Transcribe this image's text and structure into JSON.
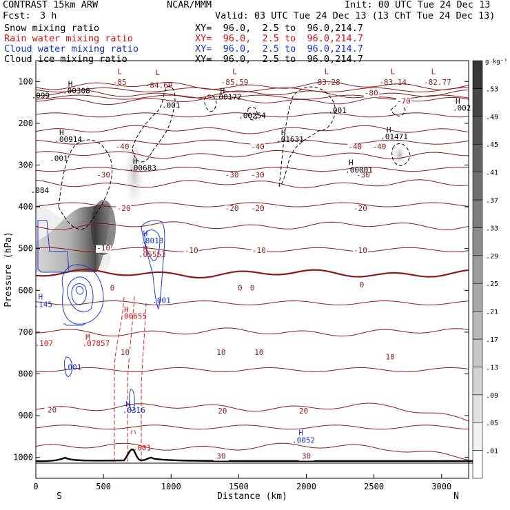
{
  "header": {
    "model": "CONTRAST 15km ARW",
    "center": "NCAR/MMM",
    "init": "Init: 00 UTC Tue 24 Dec 13",
    "fcst_label": "Fcst:",
    "fcst_value": "3 h",
    "valid": "Valid: 03 UTC Tue 24 Dec 13 (13 ChT Tue 24 Dec 13)"
  },
  "fields": [
    {
      "name": "Snow mixing ratio",
      "color": "#000000",
      "xy": "XY=  96.0,  2.5 to  96.0,214.7"
    },
    {
      "name": "Rain water mixing ratio",
      "color": "#cc1111",
      "xy": "XY=  96.0,  2.5 to  96.0,214.7"
    },
    {
      "name": "Cloud water mixing ratio",
      "color": "#1133cc",
      "xy": "XY=  96.0,  2.5 to  96.0,214.7"
    },
    {
      "name": "Cloud ice mixing ratio",
      "color": "#000000",
      "xy": "XY=  96.0,  2.5 to  96.0,214.7"
    }
  ],
  "chart_data": {
    "type": "cross-section contour",
    "xlabel": "Distance (km)",
    "ylabel": "Pressure (hPa)",
    "xlim": [
      0,
      3200
    ],
    "ylim": [
      1050,
      50
    ],
    "x_ticks": [
      0,
      500,
      1000,
      1500,
      2000,
      2500,
      3000
    ],
    "y_ticks": [
      100,
      200,
      300,
      400,
      500,
      600,
      700,
      800,
      900,
      1000
    ],
    "x_endpoints": {
      "left": "S",
      "right": "N"
    },
    "colorbar": {
      "unit": "g kg⁻¹",
      "levels": [
        ".01",
        ".05",
        ".09",
        ".13",
        ".17",
        ".21",
        ".25",
        ".29",
        ".33",
        ".37",
        ".41",
        ".45",
        ".49",
        ".53"
      ]
    },
    "temperature_contours_C": [
      {
        "value": -85,
        "p": 110
      },
      {
        "value": -80,
        "p": 130
      },
      {
        "value": -70,
        "p": 145
      },
      {
        "value": -40,
        "p": 215
      },
      {
        "value": -30,
        "p": 275
      },
      {
        "value": -20,
        "p": 345
      },
      {
        "value": -10,
        "p": 445
      },
      {
        "value": 0,
        "p": 560
      },
      {
        "value": 10,
        "p": 700
      },
      {
        "value": 20,
        "p": 880
      },
      {
        "value": 30,
        "p": 975
      }
    ],
    "annotations": [
      {
        "text": "L",
        "x": 620,
        "p": 82,
        "color": "#8b1a1a"
      },
      {
        "text": "-85",
        "x": 620,
        "p": 108,
        "color": "#8b1a1a"
      },
      {
        "text": "L",
        "x": 900,
        "p": 85,
        "color": "#8b1a1a"
      },
      {
        "text": "-84.69",
        "x": 910,
        "p": 115,
        "color": "#8b1a1a"
      },
      {
        "text": "L",
        "x": 1470,
        "p": 82,
        "color": "#8b1a1a"
      },
      {
        "text": "-85.59",
        "x": 1470,
        "p": 108,
        "color": "#8b1a1a"
      },
      {
        "text": "L",
        "x": 2150,
        "p": 82,
        "color": "#8b1a1a"
      },
      {
        "text": "-83.28",
        "x": 2150,
        "p": 108,
        "color": "#8b1a1a"
      },
      {
        "text": "L",
        "x": 2640,
        "p": 82,
        "color": "#8b1a1a"
      },
      {
        "text": "-83.14",
        "x": 2640,
        "p": 108,
        "color": "#8b1a1a"
      },
      {
        "text": "L",
        "x": 2940,
        "p": 82,
        "color": "#8b1a1a"
      },
      {
        "text": "-82.77",
        "x": 2970,
        "p": 108,
        "color": "#8b1a1a"
      },
      {
        "text": "H",
        "x": 255,
        "p": 112,
        "color": "#000000"
      },
      {
        "text": ".00308",
        "x": 300,
        "p": 128,
        "color": "#000000"
      },
      {
        "text": ".099",
        "x": 35,
        "p": 140,
        "color": "#000000"
      },
      {
        "text": ".001",
        "x": 1000,
        "p": 163,
        "color": "#000000"
      },
      {
        "text": "H",
        "x": 1380,
        "p": 128,
        "color": "#000000"
      },
      {
        "text": ".00172",
        "x": 1420,
        "p": 143,
        "color": "#000000"
      },
      {
        "text": ".00254",
        "x": 1600,
        "p": 188,
        "color": "#000000"
      },
      {
        "text": ".001",
        "x": 2230,
        "p": 175,
        "color": "#000000"
      },
      {
        "text": "H",
        "x": 3120,
        "p": 153,
        "color": "#000000"
      },
      {
        "text": ".002",
        "x": 3150,
        "p": 170,
        "color": "#000000"
      },
      {
        "text": "H",
        "x": 190,
        "p": 228,
        "color": "#000000"
      },
      {
        "text": ".00914",
        "x": 240,
        "p": 245,
        "color": "#000000"
      },
      {
        "text": "H",
        "x": 1830,
        "p": 228,
        "color": "#000000"
      },
      {
        "text": ".01631",
        "x": 1880,
        "p": 245,
        "color": "#000000"
      },
      {
        "text": "H",
        "x": 2610,
        "p": 222,
        "color": "#000000"
      },
      {
        "text": ".01471",
        "x": 2650,
        "p": 238,
        "color": "#000000"
      },
      {
        "text": ".001",
        "x": 170,
        "p": 290,
        "color": "#000000"
      },
      {
        "text": "H",
        "x": 735,
        "p": 297,
        "color": "#000000"
      },
      {
        "text": ".00683",
        "x": 790,
        "p": 313,
        "color": "#000000"
      },
      {
        "text": "H",
        "x": 2330,
        "p": 300,
        "color": "#000000"
      },
      {
        "text": ".00001",
        "x": 2390,
        "p": 318,
        "color": "#000000"
      },
      {
        "text": ".084",
        "x": 30,
        "p": 367,
        "color": "#000000"
      },
      {
        "text": "H",
        "x": 810,
        "p": 470,
        "color": "#1133cc"
      },
      {
        "text": ".8013",
        "x": 860,
        "p": 487,
        "color": "#1133cc"
      },
      {
        "text": "H",
        "x": 810,
        "p": 507,
        "color": "#cc1111"
      },
      {
        "text": ".05553",
        "x": 860,
        "p": 520,
        "color": "#cc1111"
      },
      {
        "text": "H",
        "x": 35,
        "p": 622,
        "color": "#1133cc"
      },
      {
        "text": ".145",
        "x": 55,
        "p": 640,
        "color": "#1133cc"
      },
      {
        "text": ".001",
        "x": 930,
        "p": 630,
        "color": "#1133cc"
      },
      {
        "text": "H",
        "x": 670,
        "p": 652,
        "color": "#cc1111"
      },
      {
        "text": ".00655",
        "x": 720,
        "p": 668,
        "color": "#cc1111"
      },
      {
        "text": "M",
        "x": 385,
        "p": 718,
        "color": "#cc1111"
      },
      {
        "text": ".07857",
        "x": 445,
        "p": 733,
        "color": "#cc1111"
      },
      {
        "text": ".107",
        "x": 60,
        "p": 733,
        "color": "#cc1111"
      },
      {
        "text": ".001",
        "x": 270,
        "p": 790,
        "color": "#1133cc"
      },
      {
        "text": "H",
        "x": 680,
        "p": 878,
        "color": "#1133cc"
      },
      {
        "text": ".0316",
        "x": 725,
        "p": 893,
        "color": "#1133cc"
      },
      {
        "text": ".001",
        "x": 785,
        "p": 983,
        "color": "#cc1111"
      },
      {
        "text": "H",
        "x": 1960,
        "p": 947,
        "color": "#1133cc"
      },
      {
        "text": ".0052",
        "x": 1980,
        "p": 965,
        "color": "#1133cc"
      }
    ],
    "contour_labels": [
      {
        "text": "-80",
        "x": 2480,
        "p": 133
      },
      {
        "text": "-70",
        "x": 2720,
        "p": 153
      },
      {
        "text": "-40",
        "x": 640,
        "p": 262
      },
      {
        "text": "-40",
        "x": 1640,
        "p": 262
      },
      {
        "text": "-40",
        "x": 2360,
        "p": 262
      },
      {
        "text": "-40",
        "x": 2540,
        "p": 262
      },
      {
        "text": "-30",
        "x": 500,
        "p": 330
      },
      {
        "text": "-30",
        "x": 1450,
        "p": 330
      },
      {
        "text": "-30",
        "x": 1640,
        "p": 330
      },
      {
        "text": "-30",
        "x": 2420,
        "p": 330
      },
      {
        "text": "-20",
        "x": 650,
        "p": 410
      },
      {
        "text": "-20",
        "x": 1450,
        "p": 410
      },
      {
        "text": "-20",
        "x": 1640,
        "p": 410
      },
      {
        "text": "-20",
        "x": 2400,
        "p": 410
      },
      {
        "text": "-10",
        "x": 500,
        "p": 505
      },
      {
        "text": "-10",
        "x": 1150,
        "p": 510
      },
      {
        "text": "-10",
        "x": 1650,
        "p": 510
      },
      {
        "text": "-10",
        "x": 2400,
        "p": 510
      },
      {
        "text": "0",
        "x": 565,
        "p": 600
      },
      {
        "text": "0",
        "x": 1510,
        "p": 600
      },
      {
        "text": "0",
        "x": 1600,
        "p": 600
      },
      {
        "text": "0",
        "x": 2410,
        "p": 593
      },
      {
        "text": "10",
        "x": 660,
        "p": 755
      },
      {
        "text": "10",
        "x": 1370,
        "p": 755
      },
      {
        "text": "10",
        "x": 1650,
        "p": 755
      },
      {
        "text": "10",
        "x": 2620,
        "p": 765
      },
      {
        "text": "20",
        "x": 120,
        "p": 892
      },
      {
        "text": "20",
        "x": 1380,
        "p": 895
      },
      {
        "text": "20",
        "x": 1980,
        "p": 895
      },
      {
        "text": "30",
        "x": 1370,
        "p": 1003
      },
      {
        "text": "30",
        "x": 2000,
        "p": 1003
      }
    ]
  }
}
